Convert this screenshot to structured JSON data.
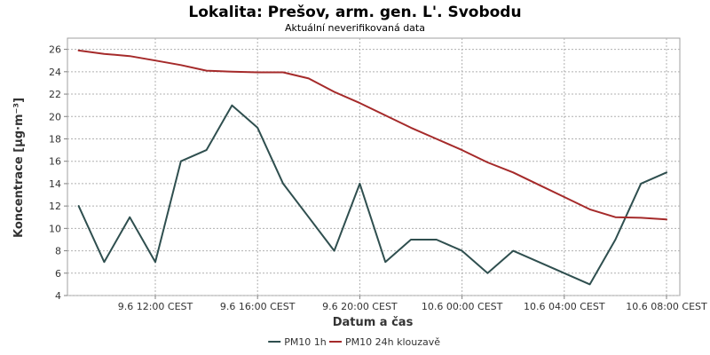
{
  "chart_data": {
    "type": "line",
    "title": "Lokalita: Prešov, arm. gen. L'. Svobodu",
    "subtitle": "Aktuální neverifikovaná data",
    "xlabel": "Datum a čas",
    "ylabel": "Koncentrace [µg·m⁻³]",
    "ylim": [
      4,
      27
    ],
    "yticks": [
      4,
      6,
      8,
      10,
      12,
      14,
      16,
      18,
      20,
      22,
      24,
      26
    ],
    "xlim": [
      "2025-06-09 09:00",
      "2025-06-10 08:00"
    ],
    "xticks": [
      {
        "x": "2025-06-09 12:00",
        "label": "9.6 12:00 CEST"
      },
      {
        "x": "2025-06-09 16:00",
        "label": "9.6 16:00 CEST"
      },
      {
        "x": "2025-06-09 20:00",
        "label": "9.6 20:00 CEST"
      },
      {
        "x": "2025-06-10 00:00",
        "label": "10.6 00:00 CEST"
      },
      {
        "x": "2025-06-10 04:00",
        "label": "10.6 04:00 CEST"
      },
      {
        "x": "2025-06-10 08:00",
        "label": "10.6 08:00 CEST"
      }
    ],
    "grid": true,
    "legend_position": "bottom-center",
    "x": [
      "2025-06-09 09:00",
      "2025-06-09 10:00",
      "2025-06-09 11:00",
      "2025-06-09 12:00",
      "2025-06-09 13:00",
      "2025-06-09 14:00",
      "2025-06-09 15:00",
      "2025-06-09 16:00",
      "2025-06-09 17:00",
      "2025-06-09 18:00",
      "2025-06-09 19:00",
      "2025-06-09 20:00",
      "2025-06-09 21:00",
      "2025-06-09 22:00",
      "2025-06-09 23:00",
      "2025-06-10 00:00",
      "2025-06-10 01:00",
      "2025-06-10 02:00",
      "2025-06-10 03:00",
      "2025-06-10 04:00",
      "2025-06-10 05:00",
      "2025-06-10 06:00",
      "2025-06-10 07:00",
      "2025-06-10 08:00"
    ],
    "series": [
      {
        "name": "PM10 1h",
        "color": "#2f4f4f",
        "values": [
          12,
          7,
          11,
          7,
          16,
          17,
          21,
          19,
          14,
          11,
          8,
          14,
          7,
          9,
          9,
          8,
          6,
          8,
          7,
          6,
          5,
          9,
          14,
          15
        ]
      },
      {
        "name": "PM10 24h klouzavě",
        "color": "#a52a2a",
        "values": [
          25.9,
          25.6,
          25.4,
          25.0,
          24.6,
          24.1,
          24.0,
          23.95,
          23.95,
          23.4,
          22.2,
          21.2,
          20.1,
          19.0,
          18.0,
          17.0,
          15.9,
          15.0,
          13.9,
          12.8,
          11.7,
          11.0,
          10.95,
          10.8
        ]
      }
    ]
  }
}
